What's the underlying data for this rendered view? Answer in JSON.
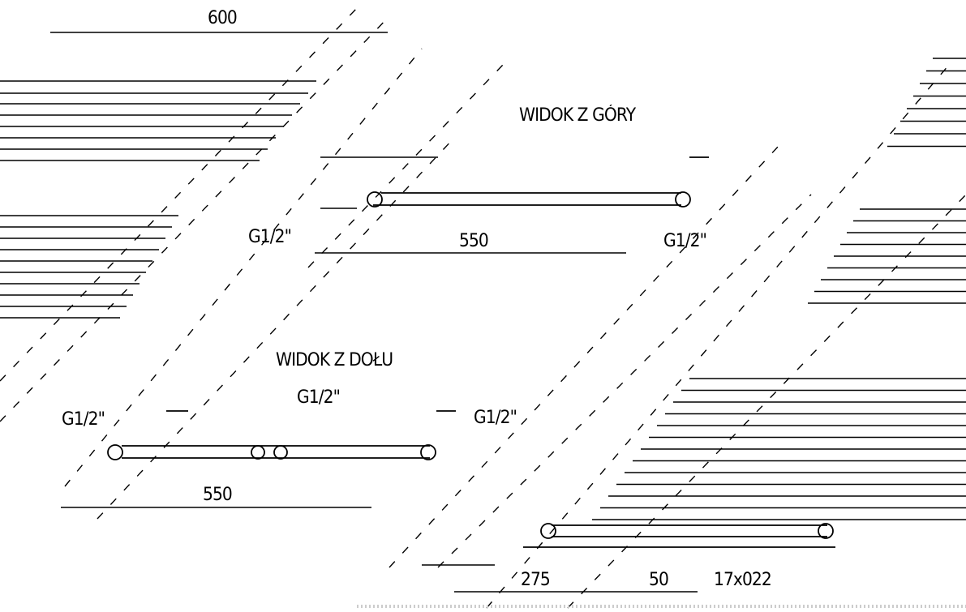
{
  "drawing": {
    "overall_width": "600",
    "top_view_title": "WIDOK Z GÓRY",
    "bottom_view_title": "WIDOK Z DOŁU",
    "top_view": {
      "left_connection": "G1/2\"",
      "right_connection": "G1/2\"",
      "width": "550"
    },
    "bottom_view": {
      "left_connection": "G1/2\"",
      "center_connection": "G1/2\"",
      "right_connection": "G1/2\"",
      "width": "550"
    },
    "front_view": {
      "half_spacing": "275",
      "pipe_spacing": "50",
      "rail_size": "17x022"
    }
  }
}
